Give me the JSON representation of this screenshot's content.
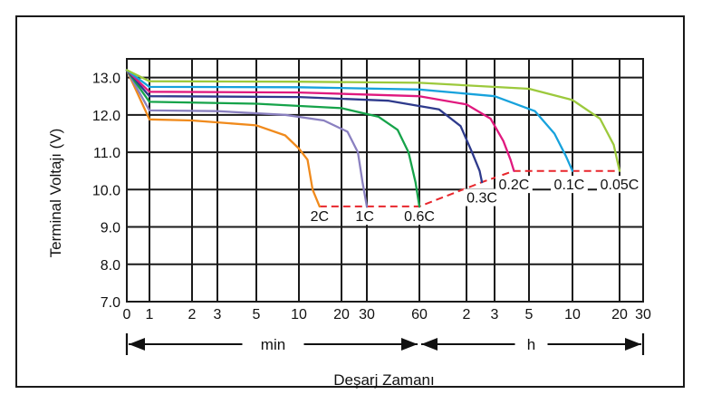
{
  "chart_data": {
    "type": "line",
    "title": "",
    "ylabel": "Terminal Voltajı (V)",
    "xlabel": "Deşarj Zamanı",
    "ylim": [
      7.0,
      13.5
    ],
    "y_ticks": [
      "7.0",
      "8.0",
      "9.0",
      "10.0",
      "11.0",
      "12.0",
      "13.0"
    ],
    "x_ticks": [
      "0",
      "1",
      "2",
      "3",
      "5",
      "10",
      "20",
      "30",
      "60",
      "2",
      "3",
      "5",
      "10",
      "20",
      "30"
    ],
    "x_ticks_minutes": [
      0,
      1,
      2,
      3,
      5,
      10,
      20,
      30,
      60,
      120,
      180,
      300,
      600,
      1200,
      1800
    ],
    "ranges": [
      {
        "label": "min",
        "from_min": 0,
        "to_min": 60
      },
      {
        "label": "h",
        "from_min": 60,
        "to_min": 1800
      }
    ],
    "grid": true,
    "cutoff_line": {
      "style": "dashed",
      "color": "#e8262c",
      "points": [
        [
          14,
          9.55
        ],
        [
          60,
          9.55
        ],
        [
          150,
          10.2
        ],
        [
          240,
          10.5
        ],
        [
          1200,
          10.5
        ]
      ]
    },
    "series": [
      {
        "name": "2C",
        "color": "#f08a1c",
        "label_x": 14,
        "label_y": 9.3,
        "points": [
          [
            0,
            13.2
          ],
          [
            1,
            11.88
          ],
          [
            2,
            11.85
          ],
          [
            5,
            11.72
          ],
          [
            8,
            11.45
          ],
          [
            10,
            11.1
          ],
          [
            11.5,
            10.8
          ],
          [
            12.5,
            10.0
          ],
          [
            14,
            9.55
          ]
        ]
      },
      {
        "name": "1C",
        "color": "#8a80c0",
        "label_x": 29,
        "label_y": 9.3,
        "points": [
          [
            0,
            13.2
          ],
          [
            1,
            12.12
          ],
          [
            3,
            12.1
          ],
          [
            8,
            12.0
          ],
          [
            15,
            11.85
          ],
          [
            22,
            11.55
          ],
          [
            26,
            11.0
          ],
          [
            28,
            10.2
          ],
          [
            30,
            9.55
          ]
        ]
      },
      {
        "name": "0.6C",
        "color": "#16a34a",
        "label_x": 60,
        "label_y": 9.3,
        "points": [
          [
            0,
            13.2
          ],
          [
            1,
            12.35
          ],
          [
            5,
            12.3
          ],
          [
            20,
            12.18
          ],
          [
            35,
            11.95
          ],
          [
            45,
            11.6
          ],
          [
            52,
            11.0
          ],
          [
            57,
            10.2
          ],
          [
            60,
            9.55
          ]
        ]
      },
      {
        "name": "0.3C",
        "color": "#2e3a8c",
        "label_x": 150,
        "label_y": 9.8,
        "points": [
          [
            0,
            13.2
          ],
          [
            1,
            12.5
          ],
          [
            10,
            12.48
          ],
          [
            40,
            12.38
          ],
          [
            80,
            12.15
          ],
          [
            110,
            11.7
          ],
          [
            130,
            11.0
          ],
          [
            145,
            10.5
          ],
          [
            150,
            10.2
          ]
        ]
      },
      {
        "name": "0.2C",
        "color": "#e0197e",
        "label_x": 240,
        "label_y": 10.15,
        "points": [
          [
            0,
            13.2
          ],
          [
            1,
            12.62
          ],
          [
            10,
            12.6
          ],
          [
            60,
            12.5
          ],
          [
            120,
            12.28
          ],
          [
            170,
            11.9
          ],
          [
            205,
            11.3
          ],
          [
            228,
            10.8
          ],
          [
            240,
            10.5
          ]
        ]
      },
      {
        "name": "0.1C",
        "color": "#17a2dc",
        "label_x": 570,
        "label_y": 10.15,
        "points": [
          [
            0,
            13.2
          ],
          [
            1,
            12.75
          ],
          [
            10,
            12.74
          ],
          [
            60,
            12.68
          ],
          [
            180,
            12.5
          ],
          [
            330,
            12.1
          ],
          [
            450,
            11.5
          ],
          [
            540,
            10.9
          ],
          [
            600,
            10.5
          ]
        ]
      },
      {
        "name": "0.05C",
        "color": "#9cc93c",
        "label_x": 1200,
        "label_y": 10.15,
        "points": [
          [
            0,
            13.2
          ],
          [
            1,
            12.9
          ],
          [
            10,
            12.89
          ],
          [
            60,
            12.86
          ],
          [
            300,
            12.7
          ],
          [
            600,
            12.4
          ],
          [
            900,
            11.9
          ],
          [
            1100,
            11.2
          ],
          [
            1200,
            10.5
          ]
        ]
      }
    ]
  }
}
